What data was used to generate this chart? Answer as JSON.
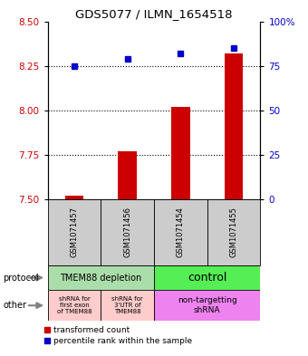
{
  "title": "GDS5077 / ILMN_1654518",
  "samples": [
    "GSM1071457",
    "GSM1071456",
    "GSM1071454",
    "GSM1071455"
  ],
  "red_values": [
    7.52,
    7.77,
    8.02,
    8.32
  ],
  "blue_values": [
    75,
    79,
    82,
    85
  ],
  "ylim_left": [
    7.5,
    8.5
  ],
  "ylim_right": [
    0,
    100
  ],
  "yticks_left": [
    7.5,
    7.75,
    8.0,
    8.25,
    8.5
  ],
  "yticks_right": [
    0,
    25,
    50,
    75,
    100
  ],
  "ytick_labels_right": [
    "0",
    "25",
    "50",
    "75",
    "100%"
  ],
  "red_color": "#cc0000",
  "blue_color": "#0000cc",
  "bar_baseline": 7.5,
  "bar_width": 0.35,
  "legend_red": "transformed count",
  "legend_blue": "percentile rank within the sample",
  "protocol_left_label": "TMEM88 depletion",
  "protocol_right_label": "control",
  "protocol_left_color": "#aaddaa",
  "protocol_right_color": "#55ee55",
  "other_label1": "shRNA for\nfirst exon\nof TMEM88",
  "other_label2": "shRNA for\n3'UTR of\nTMEM88",
  "other_label3": "non-targetting\nshRNA",
  "other_color12": "#ffcccc",
  "other_color3": "#ee82ee",
  "sample_bg": "#cccccc",
  "grid_dotted_ticks": [
    7.75,
    8.0,
    8.25
  ]
}
